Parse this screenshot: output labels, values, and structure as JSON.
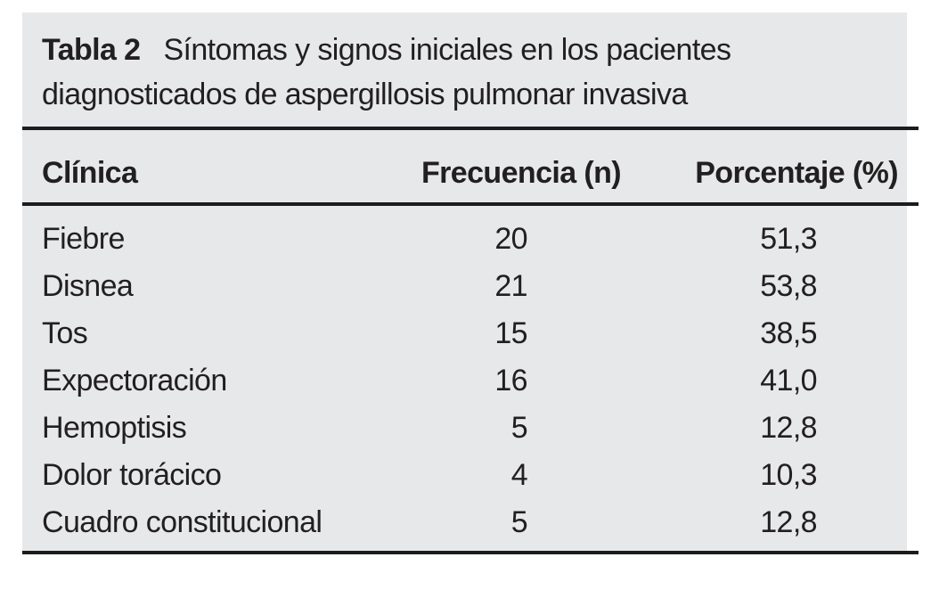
{
  "table": {
    "caption_label": "Tabla 2",
    "caption_line1": "Síntomas y signos iniciales en los pacientes",
    "caption_line2": "diagnosticados de aspergillosis pulmonar invasiva",
    "columns": [
      "Clínica",
      "Frecuencia (n)",
      "Porcentaje (%)"
    ],
    "rows": [
      {
        "clinica": "Fiebre",
        "frecuencia": "20",
        "porcentaje": "51,3"
      },
      {
        "clinica": "Disnea",
        "frecuencia": "21",
        "porcentaje": "53,8"
      },
      {
        "clinica": "Tos",
        "frecuencia": "15",
        "porcentaje": "38,5"
      },
      {
        "clinica": "Expectoración",
        "frecuencia": "16",
        "porcentaje": "41,0"
      },
      {
        "clinica": "Hemoptisis",
        "frecuencia": "5",
        "porcentaje": "12,8"
      },
      {
        "clinica": "Dolor torácico",
        "frecuencia": "4",
        "porcentaje": "10,3"
      },
      {
        "clinica": "Cuadro constitucional",
        "frecuencia": "5",
        "porcentaje": "12,8"
      }
    ]
  },
  "chart_data": {
    "type": "table",
    "title": "Tabla 2 Síntomas y signos iniciales en los pacientes diagnosticados de aspergillosis pulmonar invasiva",
    "columns": [
      "Clínica",
      "Frecuencia (n)",
      "Porcentaje (%)"
    ],
    "rows": [
      [
        "Fiebre",
        20,
        51.3
      ],
      [
        "Disnea",
        21,
        53.8
      ],
      [
        "Tos",
        15,
        38.5
      ],
      [
        "Expectoración",
        16,
        41.0
      ],
      [
        "Hemoptisis",
        5,
        12.8
      ],
      [
        "Dolor torácico",
        4,
        10.3
      ],
      [
        "Cuadro constitucional",
        5,
        12.8
      ]
    ]
  },
  "colors": {
    "panel_bg": "#e7e8e9",
    "rule": "#1c1c1c",
    "text": "#221f20",
    "page_bg": "#ffffff"
  }
}
